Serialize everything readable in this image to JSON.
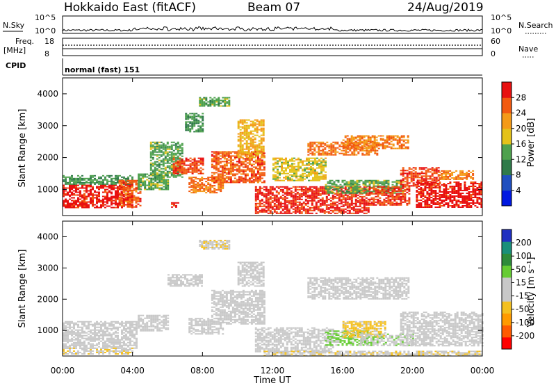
{
  "header": {
    "title": "Hokkaido East (fitACF)",
    "beam": "Beam 07",
    "date": "24/Aug/2019"
  },
  "top_panels": {
    "nsky_label": "N.Sky",
    "nsearch_label": "N.Search",
    "freq_label": "Freq.",
    "freq_unit": "[MHz]",
    "nave_label": "Nave",
    "cpid_label": "CPID",
    "nsky_ticks": [
      "10^5",
      "10^0"
    ],
    "nsearch_ticks": [
      "10^5",
      "10^0"
    ],
    "freq_ticks": [
      "18",
      "8"
    ],
    "nave_ticks": [
      "60",
      "0"
    ],
    "cpid_text": "normal (fast) 151"
  },
  "colors": {
    "power": [
      "#0018e0",
      "#1f4fbf",
      "#2f7a4a",
      "#4ea14e",
      "#e4c21a",
      "#f49a18",
      "#f25a10",
      "#e81010"
    ],
    "velocity": [
      "#ff0000",
      "#ff5a00",
      "#ff9a00",
      "#f4c020",
      "#c8c8c8",
      "#c8c8c8",
      "#66cc33",
      "#2e8b3a",
      "#1a8f7a",
      "#2030c0"
    ]
  },
  "chart_data": [
    {
      "type": "heatmap",
      "panel": "power",
      "ylabel": "Slant Range [km]",
      "y_ticks": [
        "1000",
        "2000",
        "3000",
        "4000"
      ],
      "xlim": [
        0,
        24
      ],
      "ylim": [
        180,
        4500
      ],
      "colorbar": {
        "label": "Power [dB]",
        "ticks": [
          "4",
          "8",
          "12",
          "16",
          "20",
          "24",
          "28"
        ],
        "range": [
          0,
          32
        ]
      },
      "regions": [
        {
          "x": [
            0,
            4
          ],
          "y": [
            450,
            1150
          ],
          "value": 30
        },
        {
          "x": [
            0,
            4
          ],
          "y": [
            1150,
            1450
          ],
          "value": 12
        },
        {
          "x": [
            3.2,
            4.4
          ],
          "y": [
            450,
            1300
          ],
          "value": 26
        },
        {
          "x": [
            4.3,
            6.0
          ],
          "y": [
            1000,
            1500
          ],
          "value": 14
        },
        {
          "x": [
            5.0,
            6.8
          ],
          "y": [
            1400,
            2500
          ],
          "value": 14
        },
        {
          "x": [
            6.2,
            6.6
          ],
          "y": [
            450,
            600
          ],
          "value": 30
        },
        {
          "x": [
            6.3,
            8.0
          ],
          "y": [
            1500,
            2000
          ],
          "value": 27
        },
        {
          "x": [
            7.0,
            8.0
          ],
          "y": [
            2800,
            3400
          ],
          "value": 12
        },
        {
          "x": [
            7.2,
            9.2
          ],
          "y": [
            900,
            1400
          ],
          "value": 25
        },
        {
          "x": [
            7.8,
            9.5
          ],
          "y": [
            3600,
            3900
          ],
          "value": 14
        },
        {
          "x": [
            8.5,
            11.5
          ],
          "y": [
            1200,
            2200
          ],
          "value": 26
        },
        {
          "x": [
            10.0,
            11.5
          ],
          "y": [
            2000,
            3200
          ],
          "value": 20
        },
        {
          "x": [
            11.0,
            17.5
          ],
          "y": [
            250,
            1100
          ],
          "value": 29
        },
        {
          "x": [
            12.0,
            15.0
          ],
          "y": [
            1300,
            2000
          ],
          "value": 18
        },
        {
          "x": [
            14.0,
            18.0
          ],
          "y": [
            2100,
            2500
          ],
          "value": 25
        },
        {
          "x": [
            16.0,
            19.8
          ],
          "y": [
            2300,
            2700
          ],
          "value": 24
        },
        {
          "x": [
            15.0,
            19.5
          ],
          "y": [
            900,
            1300
          ],
          "value": 14
        },
        {
          "x": [
            17.5,
            19.8
          ],
          "y": [
            500,
            1100
          ],
          "value": 28
        },
        {
          "x": [
            19.3,
            21.5
          ],
          "y": [
            1100,
            1700
          ],
          "value": 28
        },
        {
          "x": [
            20.2,
            24.0
          ],
          "y": [
            450,
            1250
          ],
          "value": 30
        },
        {
          "x": [
            21.5,
            23.5
          ],
          "y": [
            1300,
            1600
          ],
          "value": 24
        }
      ]
    },
    {
      "type": "heatmap",
      "panel": "velocity",
      "xlabel": "Time UT",
      "ylabel": "Slant Range [km]",
      "x_ticks": [
        "00:00",
        "04:00",
        "08:00",
        "12:00",
        "16:00",
        "20:00",
        "00:00"
      ],
      "y_ticks": [
        "1000",
        "2000",
        "3000",
        "4000"
      ],
      "xlim": [
        0,
        24
      ],
      "ylim": [
        180,
        4500
      ],
      "colorbar": {
        "label": "Velocity [m s⁻¹]",
        "ticks": [
          "-200",
          "-100",
          "-50",
          "-15",
          "15",
          "50",
          "100",
          "200"
        ],
        "range": [
          -250,
          250
        ]
      },
      "regions": [
        {
          "x": [
            0,
            4.2
          ],
          "y": [
            450,
            1300
          ],
          "value": 0
        },
        {
          "x": [
            0,
            4
          ],
          "y": [
            250,
            450
          ],
          "value": -40
        },
        {
          "x": [
            4.3,
            6.0
          ],
          "y": [
            1000,
            1500
          ],
          "value": 0
        },
        {
          "x": [
            6.0,
            8.0
          ],
          "y": [
            2400,
            2800
          ],
          "value": 0
        },
        {
          "x": [
            7.2,
            9.2
          ],
          "y": [
            900,
            1400
          ],
          "value": 0
        },
        {
          "x": [
            7.8,
            9.5
          ],
          "y": [
            3600,
            3900
          ],
          "value": -40
        },
        {
          "x": [
            8.5,
            11.5
          ],
          "y": [
            1200,
            2300
          ],
          "value": 0
        },
        {
          "x": [
            10.0,
            11.5
          ],
          "y": [
            2400,
            3200
          ],
          "value": 0
        },
        {
          "x": [
            11.0,
            15.5
          ],
          "y": [
            300,
            1100
          ],
          "value": 0
        },
        {
          "x": [
            14.0,
            19.8
          ],
          "y": [
            2000,
            2700
          ],
          "value": 0
        },
        {
          "x": [
            15.0,
            17.5
          ],
          "y": [
            550,
            1000
          ],
          "value": 60
        },
        {
          "x": [
            16.0,
            18.5
          ],
          "y": [
            800,
            1300
          ],
          "value": -60
        },
        {
          "x": [
            17.0,
            20.0
          ],
          "y": [
            500,
            900
          ],
          "value": 40
        },
        {
          "x": [
            19.3,
            24.0
          ],
          "y": [
            500,
            1600
          ],
          "value": 0
        },
        {
          "x": [
            11.5,
            24.0
          ],
          "y": [
            200,
            350
          ],
          "value": -40
        }
      ]
    }
  ]
}
